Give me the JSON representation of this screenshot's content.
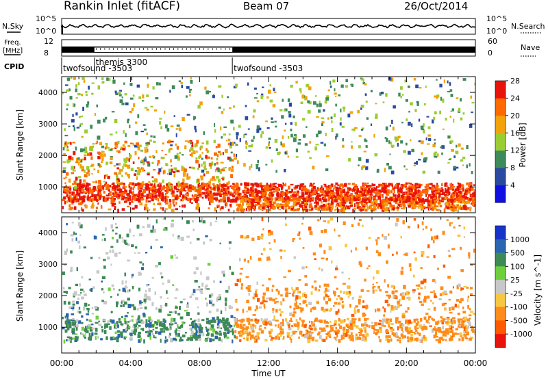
{
  "header": {
    "title": "Rankin Inlet (fitACF)",
    "beam": "Beam 07",
    "date": "26/Oct/2014"
  },
  "summary": {
    "nsky_label": "N.Sky",
    "nsearch_label": "N.Search",
    "nsky_ticks": [
      "10^5",
      "10^0"
    ],
    "nsearch_ticks": [
      "10^5",
      "10^0"
    ],
    "freq_label_line1": "Freq.",
    "freq_label_line2": "[MHz]",
    "freq_ticks": [
      "12",
      "8"
    ],
    "nave_label": "Nave",
    "nave_ticks": [
      "60",
      "0"
    ],
    "cpid_label": "CPID",
    "cpid_segments": [
      {
        "name": "twofsound -3503",
        "start_h": 0.0,
        "end_h": 1.9
      },
      {
        "name": "themis 3300",
        "start_h": 1.9,
        "end_h": 9.9
      },
      {
        "name": "twofsound -3503",
        "start_h": 9.9,
        "end_h": 24.0
      }
    ]
  },
  "chart_data": [
    {
      "type": "heatmap",
      "parameter": "Power",
      "ylabel": "Slant Range [km]",
      "ylim": [
        180,
        4500
      ],
      "xlim_hours": [
        0,
        24
      ],
      "yticks": [
        1000,
        2000,
        3000,
        4000
      ],
      "colorbar": {
        "label": "Power [dB]",
        "ticks": [
          4,
          8,
          12,
          16,
          20,
          24,
          28
        ],
        "colors": [
          "#1010e0",
          "#2a4aa0",
          "#3d8a5a",
          "#9acd32",
          "#f2a20a",
          "#ff6a00",
          "#e8140c"
        ],
        "range": [
          0,
          30
        ]
      },
      "features": [
        {
          "desc": "strong echo band",
          "start_h": 0.0,
          "end_h": 24.0,
          "range_km": [
            600,
            1100
          ],
          "value": 28
        },
        {
          "desc": "streaks",
          "start_h": 1.5,
          "end_h": 10.0,
          "range_km": [
            1100,
            2400
          ],
          "value": 22
        }
      ]
    },
    {
      "type": "heatmap",
      "parameter": "Velocity",
      "ylabel": "Slant Range [km]",
      "xlabel": "Time UT",
      "ylim": [
        180,
        4500
      ],
      "xlim_hours": [
        0,
        24
      ],
      "yticks": [
        1000,
        2000,
        3000,
        4000
      ],
      "xtick_labels": [
        "00:00",
        "04:00",
        "08:00",
        "12:00",
        "16:00",
        "20:00",
        "00:00"
      ],
      "colorbar": {
        "label": "Velocity [m s^-1]",
        "ticks": [
          "1000",
          "500",
          "100",
          "25",
          "-25",
          "-100",
          "-500",
          "-1000"
        ],
        "colors": [
          "#1833c8",
          "#2a65b0",
          "#3e8a56",
          "#6ecf3c",
          "#c8c8c8",
          "#f7c642",
          "#ff8c1a",
          "#ff5a00",
          "#e8140c"
        ]
      },
      "features": [
        {
          "desc": "positive velocity (green/blue)",
          "start_h": 0.0,
          "end_h": 10.0
        },
        {
          "desc": "negative velocity (orange)",
          "start_h": 10.0,
          "end_h": 24.0
        }
      ]
    }
  ]
}
